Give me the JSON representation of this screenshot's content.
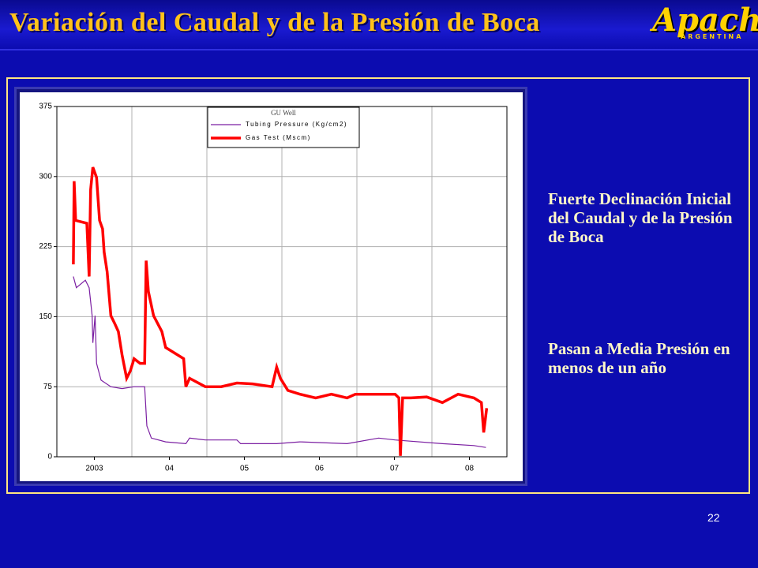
{
  "header": {
    "title": "Variación del Caudal y de la Presión de Boca"
  },
  "logo": {
    "text": "Apache",
    "subtext": "ARGENTINA"
  },
  "chart_data": {
    "type": "line",
    "legend_title": "GU Well",
    "xlim": [
      2003,
      2009
    ],
    "xticks": [
      {
        "value": 2003.5,
        "label": "2003"
      },
      {
        "value": 2004.5,
        "label": "04"
      },
      {
        "value": 2005.5,
        "label": "05"
      },
      {
        "value": 2006.5,
        "label": "06"
      },
      {
        "value": 2007.5,
        "label": "07"
      },
      {
        "value": 2008.5,
        "label": "08"
      }
    ],
    "ylim": [
      0,
      375
    ],
    "yticks": [
      0,
      75,
      150,
      225,
      300,
      375
    ],
    "grid": true,
    "series": [
      {
        "name": "Tubing Pressure (Kg/cm2)",
        "color": "#7b1fa2",
        "x": [
          2003.22,
          2003.26,
          2003.38,
          2003.43,
          2003.47,
          2003.48,
          2003.51,
          2003.53,
          2003.59,
          2003.72,
          2003.87,
          2004.03,
          2004.17,
          2004.2,
          2004.26,
          2004.45,
          2004.72,
          2004.77,
          2004.98,
          2005.4,
          2005.45,
          2005.93,
          2006.24,
          2006.87,
          2007.29,
          2007.51,
          2008.14,
          2008.56,
          2008.72
        ],
        "values": [
          193,
          181,
          189,
          181,
          151,
          122,
          151,
          100,
          82,
          75,
          73,
          75,
          75,
          33,
          20,
          16,
          14,
          20,
          18,
          18,
          14,
          14,
          16,
          14,
          20,
          18,
          14,
          12,
          10
        ]
      },
      {
        "name": "Gas Test (Mscm)",
        "color": "#ff0000",
        "x": [
          2003.22,
          2003.23,
          2003.25,
          2003.4,
          2003.43,
          2003.45,
          2003.48,
          2003.53,
          2003.57,
          2003.61,
          2003.63,
          2003.67,
          2003.72,
          2003.77,
          2003.82,
          2003.87,
          2003.93,
          2003.98,
          2004.03,
          2004.11,
          2004.17,
          2004.19,
          2004.22,
          2004.29,
          2004.4,
          2004.45,
          2004.61,
          2004.69,
          2004.72,
          2004.77,
          2004.98,
          2005.19,
          2005.4,
          2005.61,
          2005.87,
          2005.93,
          2005.98,
          2006.08,
          2006.24,
          2006.45,
          2006.66,
          2006.87,
          2006.98,
          2007.19,
          2007.51,
          2007.56,
          2007.58,
          2007.61,
          2007.72,
          2007.93,
          2008.14,
          2008.35,
          2008.56,
          2008.66,
          2008.69,
          2008.73
        ],
        "values": [
          206,
          295,
          253,
          250,
          193,
          286,
          310,
          299,
          253,
          244,
          219,
          198,
          151,
          143,
          134,
          109,
          84,
          92,
          105,
          100,
          100,
          210,
          177,
          151,
          134,
          117,
          109,
          105,
          75,
          84,
          75,
          75,
          79,
          78,
          75,
          96,
          84,
          71,
          67,
          63,
          67,
          63,
          67,
          67,
          67,
          63,
          1,
          63,
          63,
          64,
          58,
          67,
          63,
          58,
          26,
          52
        ]
      }
    ]
  },
  "bullets": [
    "Fuerte Declinación Inicial del Caudal y de la Presión de Boca",
    "Pasan a Media Presión en menos de un año"
  ],
  "page_number": "22"
}
